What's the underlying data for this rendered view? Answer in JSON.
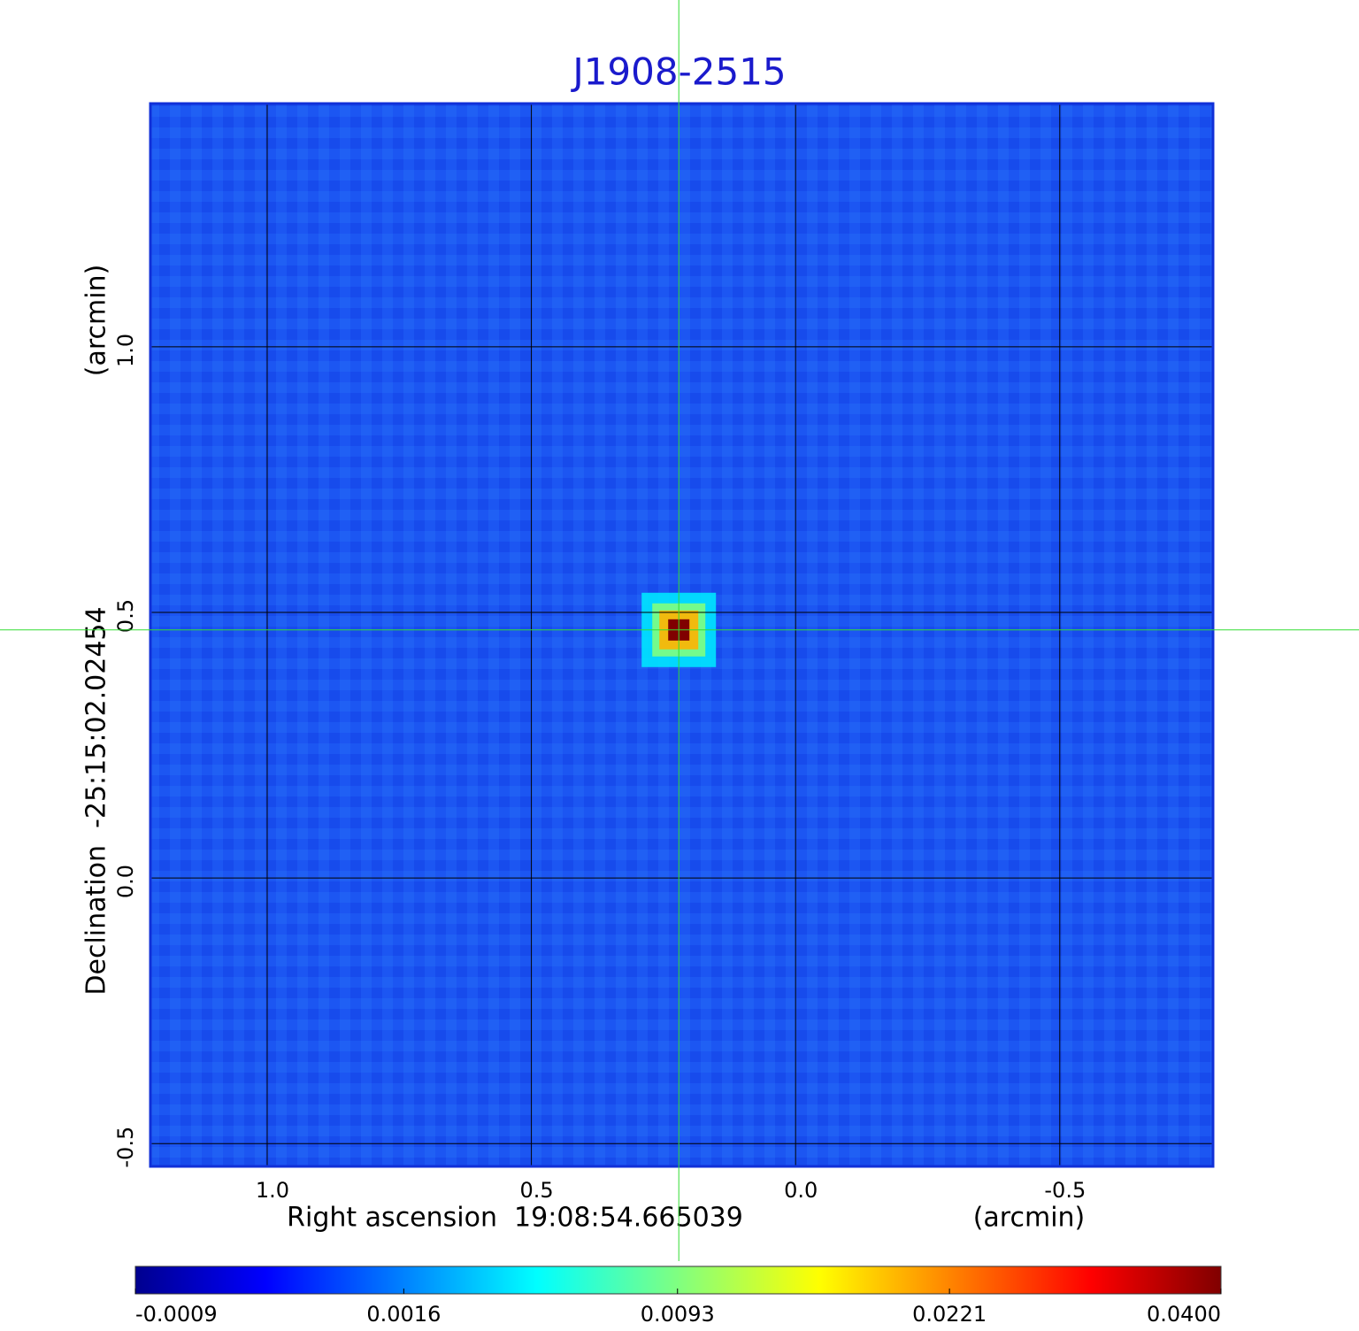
{
  "chart_data": {
    "type": "image",
    "title": "J1908-2515",
    "xlabel": "Right ascension  19:08:54.665039",
    "xunit": "(arcmin)",
    "ylabel": "Declination  -25:15:02.02454",
    "yunit": "(arcmin)",
    "xlim": [
      1.221,
      -0.79
    ],
    "ylim": [
      -0.543,
      1.458
    ],
    "xticks": [
      {
        "value": 1,
        "label": "1.0"
      },
      {
        "value": 0.5,
        "label": "0.5"
      },
      {
        "value": 0,
        "label": "0.0"
      },
      {
        "value": -0.5,
        "label": "-0.5"
      }
    ],
    "yticks": [
      {
        "value": -0.5,
        "label": "-0.5"
      },
      {
        "value": 0,
        "label": "0.0"
      },
      {
        "value": 0.5,
        "label": "0.5"
      },
      {
        "value": 1,
        "label": "1.0"
      }
    ],
    "grid": true,
    "crosshair": {
      "x": 0.221,
      "y": 0.467
    },
    "source": {
      "x": 0.221,
      "y": 0.467,
      "value": 0.04
    },
    "colormap": "jet",
    "colorbar": {
      "scale": "sqrt",
      "clim": [
        -0.0009,
        0.04
      ],
      "ticks": [
        -0.0009,
        0.0016,
        0.0093,
        0.0221,
        {
          "value": 0.04,
          "label": "0.0400"
        }
      ]
    }
  }
}
